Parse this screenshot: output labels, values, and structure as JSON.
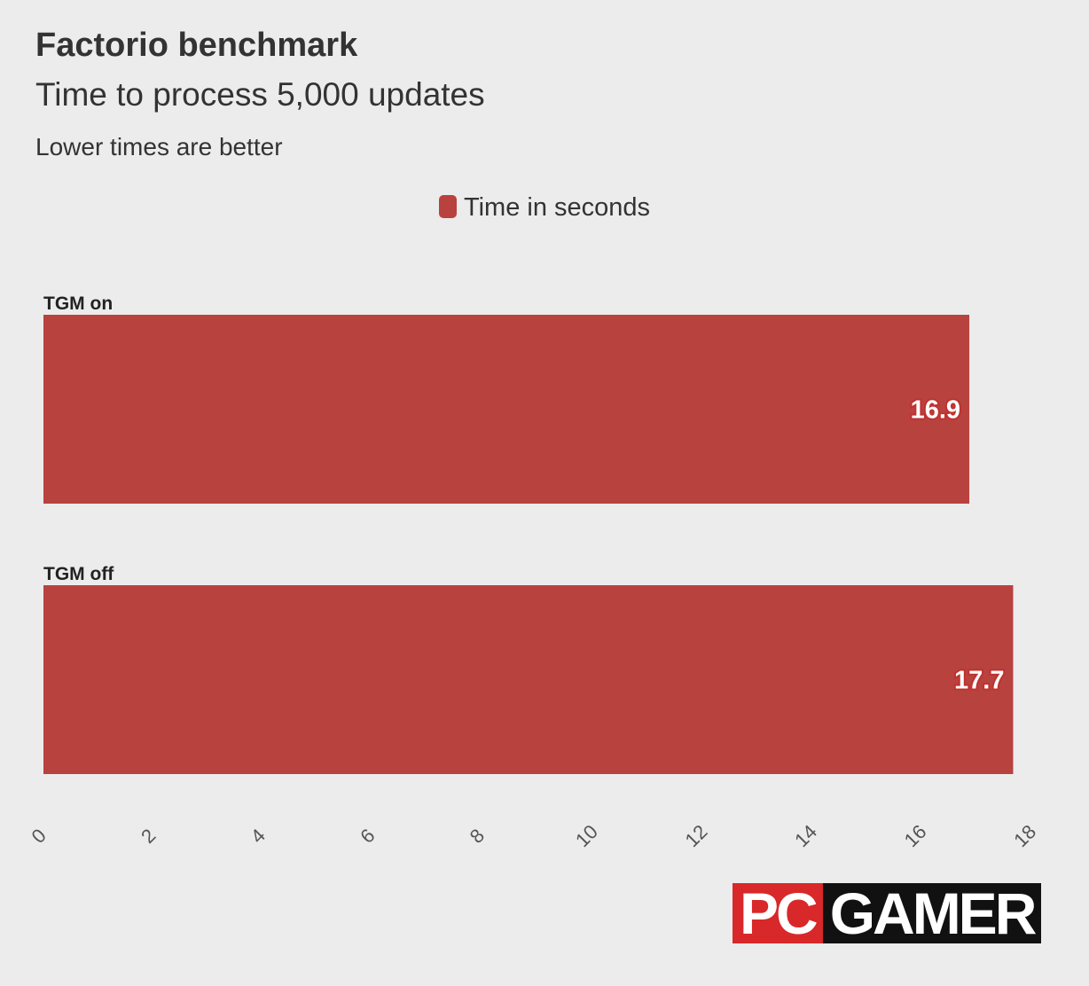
{
  "chart_data": {
    "type": "bar",
    "orientation": "horizontal",
    "title": "Factorio benchmark",
    "subtitle": "Time to process 5,000 updates",
    "note": "Lower times are better",
    "legend_position": "top-center",
    "categories": [
      "TGM on",
      "TGM off"
    ],
    "series": [
      {
        "name": "Time in seconds",
        "values": [
          16.9,
          17.7
        ],
        "color": "#b8423e"
      }
    ],
    "xlim": [
      0,
      18
    ],
    "xticks": [
      "0",
      "2",
      "4",
      "6",
      "8",
      "10",
      "12",
      "14",
      "16",
      "18"
    ],
    "grid": false
  },
  "logo": {
    "left": "PC",
    "right": "GAMER",
    "left_color": "#d8282a",
    "right_color": "#111111"
  }
}
